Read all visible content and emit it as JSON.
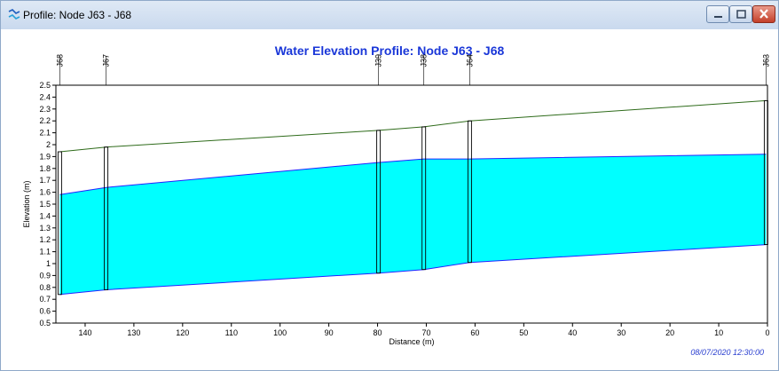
{
  "window": {
    "title": "Profile: Node J63 - J68",
    "controls": {
      "minimize": "minimize",
      "maximize": "maximize",
      "close": "close"
    }
  },
  "chart_data": {
    "type": "area",
    "title": "Water Elevation Profile: Node J63 - J68",
    "xlabel": "Distance (m)",
    "ylabel": "Elevation (m)",
    "xlim": [
      146,
      0
    ],
    "ylim": [
      0.5,
      2.5
    ],
    "x_ticks": [
      140,
      130,
      120,
      110,
      100,
      90,
      80,
      70,
      60,
      50,
      40,
      30,
      20,
      10,
      0
    ],
    "y_ticks": [
      0.5,
      0.6,
      0.7,
      0.8,
      0.9,
      1,
      1.1,
      1.2,
      1.3,
      1.4,
      1.5,
      1.6,
      1.7,
      1.8,
      1.9,
      2,
      2.1,
      2.2,
      2.3,
      2.4,
      2.5
    ],
    "nodes": [
      {
        "name": "J68",
        "x": 145.2,
        "ground": 1.94,
        "water": 1.58,
        "invert": 0.74
      },
      {
        "name": "J67",
        "x": 135.7,
        "ground": 1.98,
        "water": 1.64,
        "invert": 0.78
      },
      {
        "name": "J39",
        "x": 79.8,
        "ground": 2.12,
        "water": 1.85,
        "invert": 0.92
      },
      {
        "name": "J38",
        "x": 70.5,
        "ground": 2.15,
        "water": 1.88,
        "invert": 0.95
      },
      {
        "name": "J64",
        "x": 61.1,
        "ground": 2.2,
        "water": 1.88,
        "invert": 1.01
      },
      {
        "name": "J63",
        "x": 0.3,
        "ground": 2.37,
        "water": 1.92,
        "invert": 1.16
      }
    ],
    "colors": {
      "water_fill": "#00ffff",
      "water_line": "#2222ff",
      "ground_line": "#2e6b1a",
      "node_line": "#000000"
    },
    "timestamp": "08/07/2020 12:30:00"
  }
}
